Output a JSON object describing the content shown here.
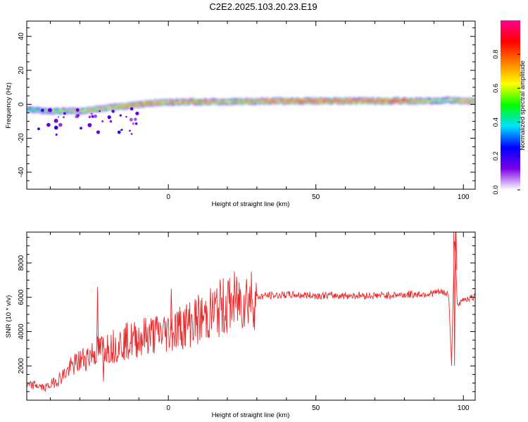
{
  "title": "C2E2.2025.103.20.23.E19",
  "colors": {
    "line": "#e8282a",
    "background": "#ffffff",
    "colorbar": [
      "#ffffff",
      "#7b00e6",
      "#0000ff",
      "#00e0ff",
      "#00ff00",
      "#ffff00",
      "#ff8000",
      "#ff0000",
      "#ff0090"
    ]
  },
  "chart_data": [
    {
      "type": "heatmap",
      "title": "",
      "xlabel": "Height of straight line (km)",
      "ylabel": "Frequency (Hz)",
      "xlim": [
        -48,
        104
      ],
      "ylim": [
        -50,
        49
      ],
      "xticks": [
        0,
        50,
        100
      ],
      "yticks": [
        -40,
        -20,
        0,
        20,
        40
      ],
      "colorbar": {
        "label": "Normalized spectral amplitude",
        "range": [
          0,
          1
        ],
        "ticks": [
          0.0,
          0.2,
          0.4,
          0.6,
          0.8
        ]
      },
      "ridge": {
        "description": "dominant frequency band vs height",
        "x": [
          -48,
          -40,
          -30,
          -20,
          -10,
          -3,
          5,
          10,
          20,
          30,
          40,
          50,
          60,
          70,
          80,
          88,
          92,
          95,
          100,
          104
        ],
        "frequency": [
          -3,
          -4,
          -4,
          -2,
          0,
          1,
          1.5,
          1.5,
          1.5,
          1.8,
          2,
          2,
          2,
          2,
          2,
          2,
          2,
          2.5,
          2,
          2
        ],
        "amplitude": [
          0.4,
          0.5,
          0.6,
          0.6,
          0.8,
          0.7,
          0.7,
          0.7,
          0.6,
          0.7,
          0.8,
          0.8,
          0.8,
          0.8,
          0.8,
          0.6,
          0.5,
          0.5,
          0.7,
          0.7
        ]
      }
    },
    {
      "type": "line",
      "title": "",
      "xlabel": "Height of straight line (km)",
      "ylabel": "SNR (10 * v/v)",
      "xlim": [
        -48,
        104
      ],
      "ylim": [
        0,
        9800
      ],
      "xticks": [
        0,
        50,
        100
      ],
      "yticks": [
        2000,
        4000,
        6000,
        8000
      ],
      "series": [
        {
          "x": [
            -48,
            -45,
            -42,
            -39,
            -36,
            -33,
            -30,
            -27,
            -24,
            -21,
            -18,
            -15,
            -12,
            -9,
            -6,
            -3,
            0,
            3,
            6,
            9,
            12,
            15,
            18,
            21,
            24,
            27,
            30,
            33,
            36,
            40,
            50,
            60,
            70,
            80,
            88,
            92,
            95,
            96,
            97,
            98,
            100,
            104
          ],
          "y": [
            800,
            900,
            700,
            1000,
            1400,
            1900,
            2300,
            2600,
            2900,
            3100,
            3200,
            3400,
            3500,
            3700,
            3800,
            3900,
            4000,
            4200,
            4400,
            4600,
            4800,
            5100,
            5400,
            5600,
            5800,
            6000,
            6000,
            6100,
            6100,
            6150,
            6100,
            6100,
            6100,
            6150,
            6200,
            6300,
            6200,
            2000,
            9800,
            5400,
            5900,
            6000
          ],
          "spikes": [
            {
              "x": -24,
              "y": 6600
            },
            {
              "x": 1,
              "y": 6500
            },
            {
              "x": -22,
              "y": 1100
            },
            {
              "x": 97,
              "y": 2000
            },
            {
              "x": 97.5,
              "y": 9800
            }
          ]
        }
      ]
    }
  ]
}
